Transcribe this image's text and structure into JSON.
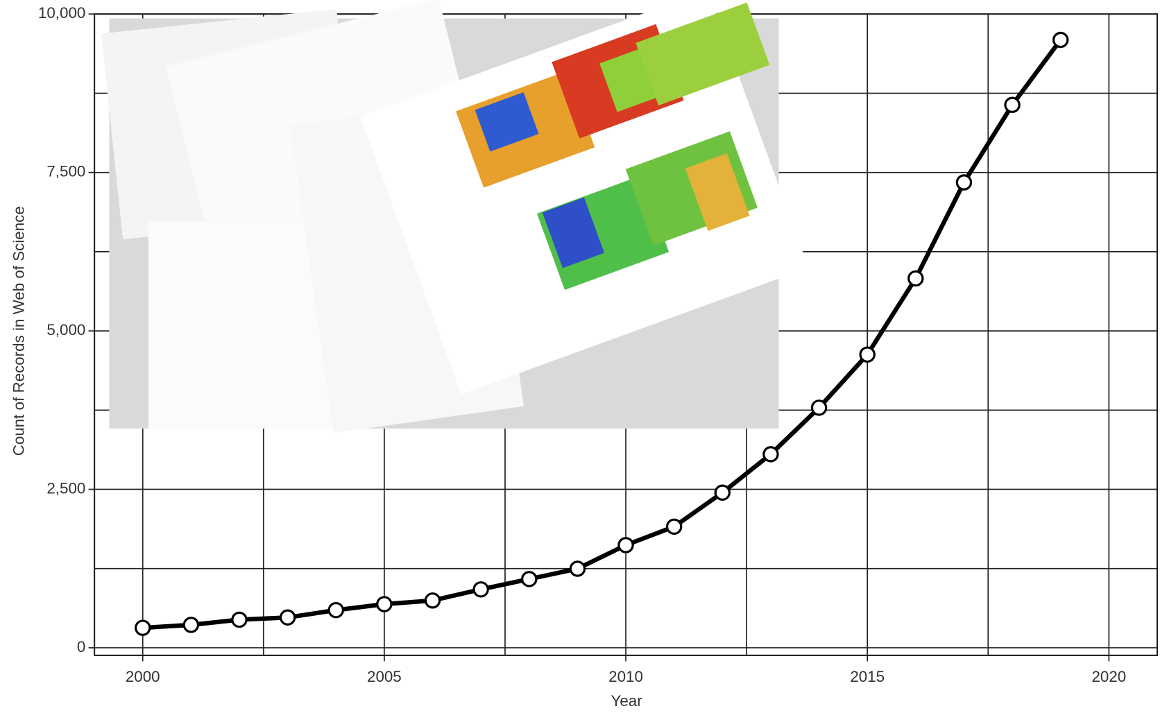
{
  "chart_data": {
    "type": "line",
    "xlabel": "Year",
    "ylabel": "Count of Records in Web of Science",
    "x": [
      2000,
      2001,
      2002,
      2003,
      2004,
      2005,
      2006,
      2007,
      2008,
      2009,
      2010,
      2011,
      2012,
      2013,
      2014,
      2015,
      2016,
      2017,
      2018,
      2019
    ],
    "series": [
      {
        "color": "#000000",
        "values": [
          315,
          361,
          443,
          478,
          594,
          688,
          746,
          921,
          1084,
          1247,
          1620,
          1911,
          2448,
          3054,
          3788,
          4627,
          5828,
          7343,
          8566,
          9592
        ]
      }
    ],
    "xlim": [
      1999,
      2021
    ],
    "xticks": [
      2000,
      2005,
      2010,
      2015,
      2020
    ],
    "ylim": [
      -120,
      10000
    ],
    "yticks": [
      0,
      {
        "value": 2500,
        "label": "2,500"
      },
      {
        "value": 5000,
        "label": "5,000"
      },
      {
        "value": 7500,
        "label": "7,500"
      },
      {
        "value": 10000,
        "label": "10,000"
      }
    ],
    "grid": true,
    "minor_grid": true,
    "markers": true
  }
}
